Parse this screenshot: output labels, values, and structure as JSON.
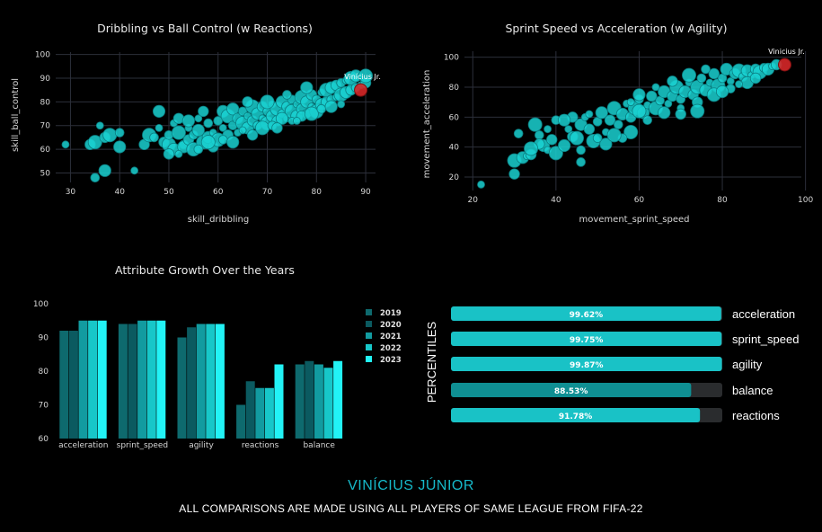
{
  "footer": {
    "player_name": "VINÍCIUS JÚNIOR",
    "note": "ALL COMPARISONS ARE MADE USING ALL PLAYERS OF SAME LEAGUE FROM FIFA-22"
  },
  "colors": {
    "scatter_point": "#1ad1d1",
    "highlight_point": "#d62728",
    "bar_2019": "#0e6a6e",
    "bar_2020": "#0b5a60",
    "bar_2021": "#129ba0",
    "bar_2022": "#17c7c9",
    "bar_2023": "#22f3f6",
    "pct_fill_1": "#19c2c6",
    "pct_fill_2": "#0f8f93"
  },
  "chart_data": [
    {
      "type": "scatter",
      "title": "Dribbling vs Ball Control (w Reactions)",
      "xlabel": "skill_dribbling",
      "ylabel": "skill_ball_control",
      "xlim": [
        27,
        92
      ],
      "ylim": [
        46,
        101
      ],
      "xticks": [
        30,
        40,
        50,
        60,
        70,
        80,
        90
      ],
      "yticks": [
        50,
        60,
        70,
        80,
        90,
        100
      ],
      "grid": true,
      "highlight": {
        "name": "Vinícius Jr.",
        "x": 89,
        "y": 85
      },
      "points": [
        [
          29,
          62
        ],
        [
          34,
          62
        ],
        [
          35,
          63
        ],
        [
          35,
          48
        ],
        [
          37,
          51
        ],
        [
          36,
          70
        ],
        [
          37,
          65
        ],
        [
          38,
          66
        ],
        [
          40,
          67
        ],
        [
          40,
          61
        ],
        [
          43,
          51
        ],
        [
          45,
          62
        ],
        [
          46,
          66
        ],
        [
          47,
          65
        ],
        [
          48,
          76
        ],
        [
          48,
          69
        ],
        [
          49,
          63
        ],
        [
          50,
          62
        ],
        [
          50,
          66
        ],
        [
          51,
          60
        ],
        [
          51,
          71
        ],
        [
          52,
          73
        ],
        [
          52,
          67
        ],
        [
          53,
          62
        ],
        [
          53,
          61
        ],
        [
          54,
          69
        ],
        [
          54,
          64
        ],
        [
          55,
          60
        ],
        [
          55,
          66
        ],
        [
          56,
          68
        ],
        [
          56,
          73
        ],
        [
          57,
          76
        ],
        [
          57,
          63
        ],
        [
          58,
          71
        ],
        [
          58,
          65
        ],
        [
          59,
          67
        ],
        [
          59,
          61
        ],
        [
          60,
          64
        ],
        [
          60,
          72
        ],
        [
          61,
          76
        ],
        [
          61,
          69
        ],
        [
          62,
          66
        ],
        [
          62,
          74
        ],
        [
          63,
          70
        ],
        [
          63,
          77
        ],
        [
          64,
          67
        ],
        [
          64,
          73
        ],
        [
          65,
          71
        ],
        [
          65,
          76
        ],
        [
          66,
          69
        ],
        [
          66,
          74
        ],
        [
          67,
          72
        ],
        [
          67,
          78
        ],
        [
          68,
          70
        ],
        [
          68,
          75
        ],
        [
          69,
          73
        ],
        [
          69,
          78
        ],
        [
          70,
          71
        ],
        [
          70,
          76
        ],
        [
          71,
          74
        ],
        [
          71,
          79
        ],
        [
          72,
          72
        ],
        [
          72,
          77
        ],
        [
          73,
          75
        ],
        [
          73,
          80
        ],
        [
          74,
          73
        ],
        [
          74,
          78
        ],
        [
          75,
          76
        ],
        [
          75,
          81
        ],
        [
          76,
          74
        ],
        [
          76,
          79
        ],
        [
          77,
          77
        ],
        [
          77,
          82
        ],
        [
          78,
          75
        ],
        [
          78,
          80
        ],
        [
          79,
          78
        ],
        [
          79,
          83
        ],
        [
          80,
          76
        ],
        [
          80,
          81
        ],
        [
          81,
          79
        ],
        [
          81,
          84
        ],
        [
          82,
          80
        ],
        [
          82,
          85
        ],
        [
          83,
          81
        ],
        [
          83,
          86
        ],
        [
          84,
          82
        ],
        [
          84,
          87
        ],
        [
          85,
          83
        ],
        [
          85,
          88
        ],
        [
          86,
          84
        ],
        [
          86,
          89
        ],
        [
          87,
          85
        ],
        [
          87,
          90
        ],
        [
          88,
          86
        ],
        [
          88,
          91
        ],
        [
          89,
          87
        ],
        [
          90,
          88
        ],
        [
          90,
          91
        ],
        [
          61,
          64
        ],
        [
          63,
          63
        ],
        [
          65,
          68
        ],
        [
          67,
          66
        ],
        [
          69,
          69
        ],
        [
          71,
          70
        ],
        [
          73,
          73
        ],
        [
          75,
          72
        ],
        [
          77,
          74
        ],
        [
          79,
          75
        ],
        [
          81,
          77
        ],
        [
          83,
          78
        ],
        [
          85,
          79
        ],
        [
          66,
          80
        ],
        [
          70,
          80
        ],
        [
          74,
          83
        ],
        [
          78,
          86
        ],
        [
          76,
          72
        ],
        [
          72,
          69
        ],
        [
          58,
          63
        ],
        [
          56,
          60
        ],
        [
          54,
          72
        ],
        [
          52,
          58
        ],
        [
          50,
          58
        ]
      ]
    },
    {
      "type": "scatter",
      "title": "Sprint Speed vs Acceleration (w Agility)",
      "xlabel": "movement_sprint_speed",
      "ylabel": "movement_acceleration",
      "xlim": [
        18,
        99
      ],
      "ylim": [
        11,
        104
      ],
      "xticks": [
        20,
        40,
        60,
        80,
        100
      ],
      "yticks": [
        20,
        40,
        60,
        80,
        100
      ],
      "grid": true,
      "highlight": {
        "name": "Vinicius Jr.",
        "x": 95,
        "y": 95
      },
      "points": [
        [
          22,
          15
        ],
        [
          30,
          22
        ],
        [
          30,
          31
        ],
        [
          31,
          49
        ],
        [
          32,
          33
        ],
        [
          33,
          34
        ],
        [
          34,
          35
        ],
        [
          35,
          55
        ],
        [
          36,
          48
        ],
        [
          37,
          41
        ],
        [
          38,
          38
        ],
        [
          39,
          45
        ],
        [
          40,
          36
        ],
        [
          40,
          58
        ],
        [
          42,
          41
        ],
        [
          43,
          52
        ],
        [
          44,
          47
        ],
        [
          45,
          46
        ],
        [
          46,
          38
        ],
        [
          46,
          55
        ],
        [
          47,
          60
        ],
        [
          48,
          52
        ],
        [
          49,
          44
        ],
        [
          50,
          57
        ],
        [
          51,
          63
        ],
        [
          52,
          50
        ],
        [
          53,
          58
        ],
        [
          54,
          66
        ],
        [
          55,
          55
        ],
        [
          56,
          62
        ],
        [
          57,
          69
        ],
        [
          58,
          60
        ],
        [
          59,
          66
        ],
        [
          60,
          72
        ],
        [
          61,
          63
        ],
        [
          62,
          68
        ],
        [
          63,
          74
        ],
        [
          64,
          66
        ],
        [
          65,
          71
        ],
        [
          66,
          77
        ],
        [
          67,
          69
        ],
        [
          68,
          74
        ],
        [
          69,
          80
        ],
        [
          70,
          72
        ],
        [
          71,
          77
        ],
        [
          72,
          83
        ],
        [
          73,
          75
        ],
        [
          74,
          80
        ],
        [
          75,
          86
        ],
        [
          76,
          78
        ],
        [
          77,
          83
        ],
        [
          78,
          89
        ],
        [
          79,
          81
        ],
        [
          80,
          86
        ],
        [
          81,
          92
        ],
        [
          82,
          84
        ],
        [
          83,
          89
        ],
        [
          84,
          91
        ],
        [
          85,
          87
        ],
        [
          86,
          91
        ],
        [
          87,
          88
        ],
        [
          88,
          92
        ],
        [
          89,
          90
        ],
        [
          90,
          93
        ],
        [
          91,
          92
        ],
        [
          92,
          94
        ],
        [
          93,
          95
        ],
        [
          58,
          50
        ],
        [
          62,
          58
        ],
        [
          66,
          63
        ],
        [
          70,
          66
        ],
        [
          74,
          70
        ],
        [
          78,
          75
        ],
        [
          82,
          79
        ],
        [
          86,
          83
        ],
        [
          64,
          80
        ],
        [
          68,
          84
        ],
        [
          60,
          64
        ],
        [
          56,
          46
        ],
        [
          52,
          42
        ],
        [
          48,
          62
        ],
        [
          44,
          60
        ],
        [
          72,
          88
        ],
        [
          76,
          92
        ],
        [
          80,
          77
        ],
        [
          84,
          82
        ],
        [
          88,
          86
        ],
        [
          54,
          48
        ],
        [
          50,
          46
        ],
        [
          42,
          58
        ],
        [
          38,
          52
        ],
        [
          36,
          42
        ],
        [
          34,
          39
        ],
        [
          46,
          30
        ],
        [
          60,
          75
        ],
        [
          58,
          70
        ],
        [
          70,
          62
        ],
        [
          74,
          64
        ]
      ]
    },
    {
      "type": "bar",
      "title": "Attribute Growth Over the Years",
      "categories": [
        "acceleration",
        "sprint_speed",
        "agility",
        "reactions",
        "balance"
      ],
      "ylim": [
        60,
        100
      ],
      "yticks": [
        60,
        70,
        80,
        90,
        100
      ],
      "legend_placement": "right",
      "series": [
        {
          "name": "2019",
          "values": [
            92,
            94,
            90,
            70,
            82
          ]
        },
        {
          "name": "2020",
          "values": [
            92,
            94,
            93,
            77,
            83
          ]
        },
        {
          "name": "2021",
          "values": [
            95,
            95,
            94,
            75,
            82
          ]
        },
        {
          "name": "2022",
          "values": [
            95,
            95,
            94,
            75,
            81
          ]
        },
        {
          "name": "2023",
          "values": [
            95,
            95,
            94,
            82,
            83
          ]
        }
      ]
    },
    {
      "type": "bar",
      "orientation": "horizontal",
      "ylabel": "PERCENTILES",
      "categories": [
        "acceleration",
        "sprint_speed",
        "agility",
        "balance",
        "reactions"
      ],
      "values": [
        99.62,
        99.75,
        99.87,
        88.53,
        91.78
      ],
      "labels": [
        "99.62%",
        "99.75%",
        "99.87%",
        "88.53%",
        "91.78%"
      ],
      "xlim": [
        0,
        100
      ]
    }
  ]
}
